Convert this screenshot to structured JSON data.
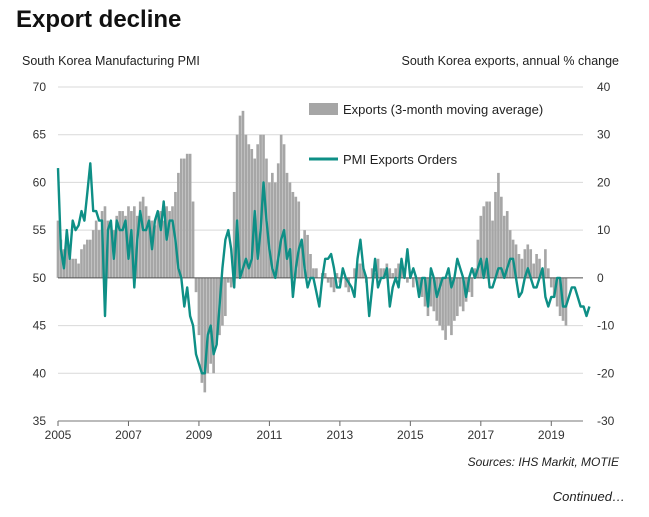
{
  "title": "Export decline",
  "source": "Sources: IHS Markit, MOTIE",
  "continued": "Continued…",
  "colors": {
    "bars": "#a6a6a6",
    "line": "#0e8f86"
  },
  "chart_data": {
    "type": "bar+line",
    "left_axis": {
      "label": "South Korea Manufacturing PMI",
      "range": [
        35,
        70
      ],
      "ticks": [
        "70",
        "65",
        "60",
        "55",
        "50",
        "45",
        "40",
        "35"
      ]
    },
    "right_axis": {
      "label": "South Korea exports, annual % change",
      "range": [
        -30,
        40
      ],
      "ticks": [
        "40",
        "30",
        "20",
        "10",
        "0",
        "-10",
        "-20",
        "-30"
      ]
    },
    "x_range": [
      2005,
      2019.9
    ],
    "x_ticks": [
      "2005",
      "2007",
      "2009",
      "2011",
      "2013",
      "2015",
      "2017",
      "2019"
    ],
    "legend": {
      "placement": "top-right",
      "bars_label": "Exports (3-month moving average)",
      "line_label": "PMI Exports Orders"
    },
    "series": [
      {
        "name": "Exports (3-month moving average)",
        "axis": "right",
        "kind": "bar",
        "x_start": 2005.0,
        "step": 0.08333,
        "values": [
          12,
          8,
          6,
          7,
          5,
          4,
          4,
          3,
          6,
          7,
          8,
          8,
          10,
          12,
          10,
          14,
          15,
          12,
          11,
          10,
          13,
          14,
          14,
          13,
          15,
          14,
          15,
          13,
          16,
          17,
          15,
          13,
          12,
          11,
          13,
          14,
          12,
          15,
          14,
          15,
          18,
          22,
          25,
          25,
          26,
          26,
          16,
          -3,
          -12,
          -22,
          -24,
          -20,
          -18,
          -20,
          -14,
          -12,
          -10,
          -8,
          -1,
          -2,
          18,
          30,
          34,
          35,
          30,
          28,
          27,
          25,
          28,
          30,
          30,
          25,
          20,
          22,
          20,
          24,
          30,
          28,
          22,
          20,
          18,
          17,
          16,
          8,
          10,
          9,
          5,
          2,
          2,
          0,
          1,
          1,
          -1,
          -2,
          -3,
          1,
          -1,
          0,
          -2,
          -3,
          0,
          2,
          3,
          3,
          2,
          -1,
          0,
          2,
          1,
          4,
          2,
          2,
          3,
          2,
          1,
          2,
          3,
          3,
          1,
          -1,
          0,
          -2,
          0,
          -3,
          -4,
          -6,
          -8,
          -6,
          -7,
          -9,
          -10,
          -11,
          -13,
          -10,
          -12,
          -9,
          -8,
          -6,
          -7,
          -5,
          -3,
          -4,
          2,
          8,
          13,
          15,
          16,
          16,
          12,
          18,
          22,
          17,
          13,
          14,
          10,
          8,
          7,
          5,
          4,
          6,
          7,
          6,
          3,
          5,
          4,
          2,
          6,
          2,
          -2,
          -4,
          -6,
          -8,
          -9,
          -10
        ]
      },
      {
        "name": "PMI Exports Orders",
        "axis": "left",
        "kind": "line",
        "x_start": 2005.0,
        "step": 0.08333,
        "values": [
          61.5,
          53,
          51,
          55,
          52,
          56,
          55,
          55.5,
          57,
          56,
          59,
          62,
          57,
          57,
          56,
          56,
          46,
          55,
          56,
          52,
          56,
          55,
          55,
          56,
          52,
          55,
          49,
          54,
          57,
          55,
          55,
          56,
          53,
          56,
          57,
          55,
          58,
          54,
          56,
          56,
          54,
          51,
          50,
          47,
          49,
          46,
          45,
          42,
          41,
          40,
          40,
          44,
          45,
          42,
          43,
          47,
          51,
          54,
          55,
          53,
          49,
          56,
          50,
          51,
          52,
          51,
          52,
          57,
          52,
          55,
          60,
          56,
          53,
          51,
          50,
          52,
          54,
          55,
          52,
          53,
          48,
          51,
          53,
          54,
          51,
          49,
          50,
          50,
          48.5,
          47,
          50,
          52,
          52,
          52.5,
          51,
          49,
          49,
          51,
          50,
          49.5,
          49,
          48,
          52,
          54,
          51,
          50,
          46,
          49,
          52,
          49,
          50,
          50,
          51,
          47,
          49,
          50,
          49,
          52,
          50,
          53,
          50,
          51,
          50,
          48,
          50,
          50,
          47,
          51,
          50,
          48,
          49,
          50,
          50,
          51,
          49,
          50,
          52,
          51,
          50,
          48,
          50,
          51,
          50,
          51,
          52,
          50,
          52,
          49,
          49,
          50,
          51,
          51,
          50,
          51,
          52,
          52,
          50,
          48,
          48.5,
          50,
          51,
          50,
          49,
          49,
          50,
          51,
          48,
          47,
          48,
          48,
          50,
          50,
          47,
          47,
          48,
          49,
          49,
          48,
          47,
          47,
          46,
          47
        ]
      }
    ]
  }
}
